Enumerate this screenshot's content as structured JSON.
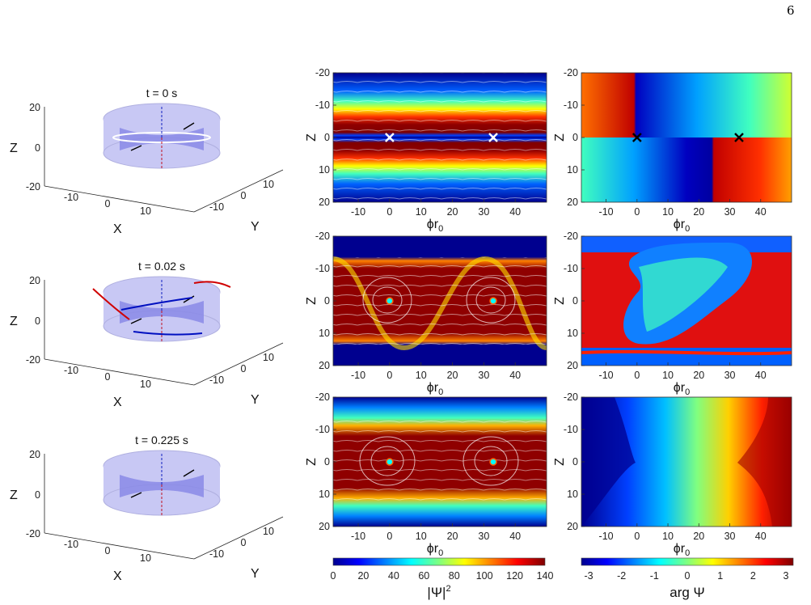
{
  "page_number": "6",
  "panels_3d": [
    {
      "title": "t = 0 s",
      "z_ticks": [
        "20",
        "0",
        "-20"
      ],
      "x_ticks": [
        "-10",
        "0",
        "10"
      ],
      "y_ticks": [
        "10",
        "0",
        "-10"
      ],
      "xlabel": "X",
      "ylabel": "Y",
      "zlabel": "Z"
    },
    {
      "title": "t = 0.02 s",
      "z_ticks": [
        "20",
        "0",
        "-20"
      ],
      "x_ticks": [
        "-10",
        "0",
        "10"
      ],
      "y_ticks": [
        "10",
        "0",
        "-10"
      ],
      "xlabel": "X",
      "ylabel": "Y",
      "zlabel": "Z"
    },
    {
      "title": "t = 0.225 s",
      "z_ticks": [
        "20",
        "0",
        "-20"
      ],
      "x_ticks": [
        "-10",
        "0",
        "10"
      ],
      "y_ticks": [
        "10",
        "0",
        "-10"
      ],
      "xlabel": "X",
      "ylabel": "Y",
      "zlabel": "Z"
    }
  ],
  "heatmap_axes": {
    "y_ticks": [
      "-20",
      "-10",
      "0",
      "10",
      "20"
    ],
    "x_ticks": [
      "-10",
      "0",
      "10",
      "20",
      "30",
      "40"
    ],
    "ylabel": "Z",
    "xlabel": "ϕr",
    "xlabel_sub": "0"
  },
  "colorbars": {
    "density": {
      "ticks": [
        "0",
        "20",
        "40",
        "60",
        "80",
        "100",
        "120",
        "140"
      ],
      "label": "|Ψ|",
      "label_sup": "2"
    },
    "phase": {
      "ticks": [
        "-3",
        "-2",
        "-1",
        "0",
        "1",
        "2",
        "3"
      ],
      "label": "arg Ψ"
    }
  },
  "chart_data": [
    {
      "type": "heatmap",
      "quantity": "|Ψ|^2",
      "time": "t = 0 s",
      "xlim": [
        -18,
        50
      ],
      "ylim": [
        -20,
        20
      ],
      "vortex_markers": [
        {
          "x": 0,
          "y": 0,
          "marker": "x"
        },
        {
          "x": 33,
          "y": 0,
          "marker": "x"
        }
      ],
      "colorbar_range": [
        0,
        140
      ]
    },
    {
      "type": "heatmap",
      "quantity": "arg Ψ",
      "time": "t = 0 s",
      "xlim": [
        -18,
        50
      ],
      "ylim": [
        -20,
        20
      ],
      "vortex_markers": [
        {
          "x": 0,
          "y": 0,
          "marker": "x"
        },
        {
          "x": 33,
          "y": 0,
          "marker": "x"
        }
      ],
      "colorbar_range": [
        -3.14,
        3.14
      ]
    },
    {
      "type": "heatmap",
      "quantity": "|Ψ|^2",
      "time": "t = 0.02 s",
      "xlim": [
        -18,
        50
      ],
      "ylim": [
        -20,
        20
      ],
      "vortex_markers": [
        {
          "x": 0,
          "y": 0,
          "marker": "dot"
        },
        {
          "x": 33,
          "y": 0,
          "marker": "dot"
        }
      ],
      "colorbar_range": [
        0,
        140
      ]
    },
    {
      "type": "heatmap",
      "quantity": "arg Ψ",
      "time": "t = 0.02 s",
      "xlim": [
        -18,
        50
      ],
      "ylim": [
        -20,
        20
      ],
      "colorbar_range": [
        -3.14,
        3.14
      ]
    },
    {
      "type": "heatmap",
      "quantity": "|Ψ|^2",
      "time": "t = 0.225 s",
      "xlim": [
        -18,
        50
      ],
      "ylim": [
        -20,
        20
      ],
      "vortex_markers": [
        {
          "x": 0,
          "y": 0,
          "marker": "dot"
        },
        {
          "x": 33,
          "y": 0,
          "marker": "dot"
        }
      ],
      "colorbar_range": [
        0,
        140
      ]
    },
    {
      "type": "heatmap",
      "quantity": "arg Ψ",
      "time": "t = 0.225 s",
      "xlim": [
        -18,
        50
      ],
      "ylim": [
        -20,
        20
      ],
      "colorbar_range": [
        -3.14,
        3.14
      ]
    }
  ]
}
